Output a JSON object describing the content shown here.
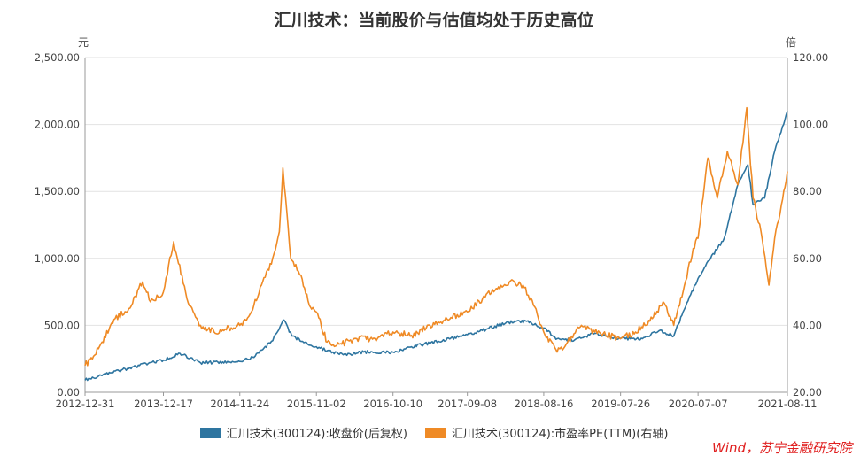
{
  "chart_data": {
    "type": "line",
    "title": "汇川技术：当前股价与估值均处于历史高位",
    "left_unit": "元",
    "right_unit": "倍",
    "y_left": {
      "min": 0,
      "max": 2500,
      "ticks": [
        "0.00",
        "500.00",
        "1,000.00",
        "1,500.00",
        "2,000.00",
        "2,500.00"
      ]
    },
    "y_right": {
      "min": 20,
      "max": 120,
      "ticks": [
        "20.00",
        "40.00",
        "60.00",
        "80.00",
        "100.00",
        "120.00"
      ]
    },
    "x_ticks": [
      "2012-12-31",
      "2013-12-17",
      "2014-11-24",
      "2015-11-02",
      "2016-10-10",
      "2017-09-08",
      "2018-08-16",
      "2019-07-26",
      "2020-07-07",
      "2021-08-11"
    ],
    "series": [
      {
        "name": "汇川技术(300124):收盘价(后复权)",
        "axis": "left",
        "color": "#2e75a0",
        "x": [
          "2012-12-31",
          "2013-03-01",
          "2013-06-01",
          "2013-09-01",
          "2013-12-17",
          "2014-03-01",
          "2014-06-01",
          "2014-11-24",
          "2015-02-01",
          "2015-04-15",
          "2015-06-10",
          "2015-07-15",
          "2015-09-01",
          "2015-11-02",
          "2016-01-15",
          "2016-03-01",
          "2016-06-01",
          "2016-10-10",
          "2017-01-01",
          "2017-05-01",
          "2017-09-08",
          "2017-12-01",
          "2018-03-01",
          "2018-06-01",
          "2018-08-16",
          "2018-10-15",
          "2019-01-01",
          "2019-04-01",
          "2019-07-26",
          "2019-11-01",
          "2020-01-15",
          "2020-03-20",
          "2020-05-01",
          "2020-07-07",
          "2020-09-01",
          "2020-11-01",
          "2021-01-01",
          "2021-02-15",
          "2021-03-10",
          "2021-05-01",
          "2021-06-15",
          "2021-08-11"
        ],
        "y": [
          90,
          120,
          160,
          200,
          240,
          290,
          220,
          230,
          270,
          380,
          540,
          420,
          380,
          340,
          300,
          280,
          300,
          300,
          340,
          380,
          430,
          470,
          520,
          530,
          480,
          400,
          390,
          440,
          400,
          400,
          460,
          420,
          600,
          850,
          1000,
          1150,
          1550,
          1700,
          1400,
          1450,
          1800,
          2100
        ]
      },
      {
        "name": "汇川技术(300124):市盈率PE(TTM)(右轴)",
        "axis": "right",
        "color": "#ef8a25",
        "x": [
          "2012-12-31",
          "2013-03-01",
          "2013-05-15",
          "2013-07-15",
          "2013-09-15",
          "2013-10-20",
          "2013-12-17",
          "2014-02-01",
          "2014-04-01",
          "2014-06-01",
          "2014-08-01",
          "2014-11-24",
          "2015-01-15",
          "2015-03-01",
          "2015-04-20",
          "2015-05-20",
          "2015-06-05",
          "2015-07-10",
          "2015-08-25",
          "2015-10-01",
          "2015-11-02",
          "2015-12-20",
          "2016-02-01",
          "2016-05-01",
          "2016-08-01",
          "2016-10-10",
          "2017-01-01",
          "2017-05-01",
          "2017-09-08",
          "2017-11-15",
          "2018-01-15",
          "2018-03-15",
          "2018-05-15",
          "2018-07-01",
          "2018-08-16",
          "2018-10-15",
          "2018-12-01",
          "2019-02-01",
          "2019-04-01",
          "2019-07-26",
          "2019-10-01",
          "2019-12-15",
          "2020-02-01",
          "2020-03-20",
          "2020-05-01",
          "2020-06-15",
          "2020-07-07",
          "2020-08-20",
          "2020-10-01",
          "2020-11-15",
          "2021-01-01",
          "2021-02-10",
          "2021-03-10",
          "2021-04-15",
          "2021-05-20",
          "2021-06-15",
          "2021-07-15",
          "2021-08-11"
        ],
        "y": [
          28,
          33,
          42,
          45,
          53,
          47,
          50,
          65,
          48,
          40,
          38,
          40,
          44,
          52,
          60,
          68,
          87,
          60,
          55,
          46,
          44,
          35,
          34,
          36,
          36,
          38,
          37,
          41,
          44,
          48,
          51,
          53,
          52,
          46,
          38,
          32,
          35,
          40,
          38,
          36,
          38,
          42,
          47,
          40,
          50,
          63,
          66,
          90,
          78,
          92,
          82,
          105,
          78,
          68,
          52,
          66,
          76,
          86
        ]
      }
    ]
  },
  "source_note": "Wind，苏宁金融研究院"
}
